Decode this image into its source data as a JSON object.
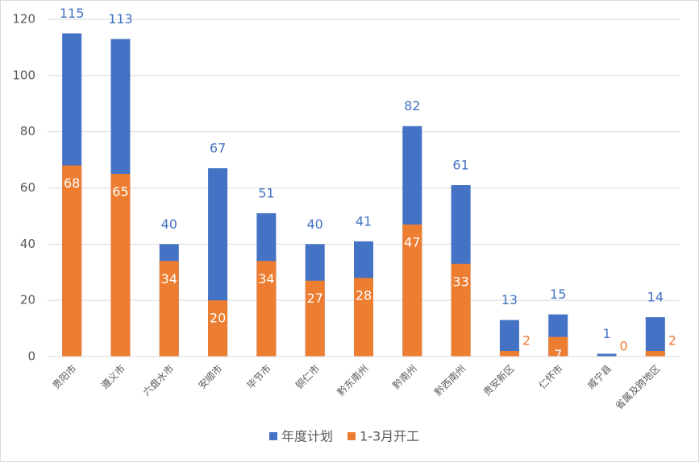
{
  "chart_data": {
    "type": "bar",
    "categories": [
      "贵阳市",
      "遵义市",
      "六盘水市",
      "安顺市",
      "毕节市",
      "铜仁市",
      "黔东南州",
      "黔南州",
      "黔西南州",
      "贵安新区",
      "仁怀市",
      "威宁县",
      "省属及跨地区"
    ],
    "series": [
      {
        "name": "年度计划",
        "color": "#4472c4",
        "values": [
          115,
          113,
          40,
          67,
          51,
          40,
          41,
          82,
          61,
          13,
          15,
          1,
          14
        ]
      },
      {
        "name": "1-3月开工",
        "color": "#ed7d31",
        "values": [
          68,
          65,
          34,
          20,
          34,
          27,
          28,
          47,
          33,
          2,
          7,
          0,
          2
        ]
      }
    ],
    "ylim": [
      0,
      120
    ],
    "yticks": [
      0,
      20,
      40,
      60,
      80,
      100,
      120
    ],
    "grid": true,
    "legend": "bottom"
  }
}
